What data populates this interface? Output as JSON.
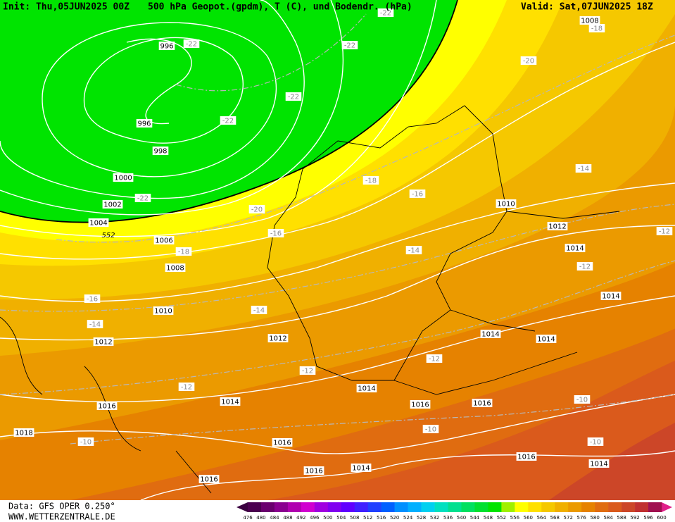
{
  "header": {
    "init": "Init: Thu,05JUN2025 00Z",
    "title": "500 hPa Geopot.(gpdm), T (C), und Bodendr. (hPa)",
    "valid": "Valid: Sat,07JUN2025 18Z"
  },
  "footer": {
    "source": "Data: GFS OPER 0.250°",
    "site": "WWW.WETTERZENTRALE.DE"
  },
  "contour_label": "552",
  "pressure_labels": [
    "996",
    "996",
    "998",
    "1000",
    "1002",
    "1004",
    "1006",
    "1008",
    "1010",
    "1012",
    "1012",
    "1014",
    "1016",
    "1018",
    "1016",
    "1016",
    "1016",
    "1014",
    "1016",
    "1016",
    "1014",
    "1016",
    "1014",
    "1014",
    "1014",
    "1014",
    "1014",
    "1012",
    "1010",
    "1008"
  ],
  "temperature_labels": [
    "-22",
    "-22",
    "-22",
    "-22",
    "-22",
    "-22",
    "-20",
    "-20",
    "-18",
    "-18",
    "-18",
    "-16",
    "-16",
    "-16",
    "-14",
    "-14",
    "-14",
    "-14",
    "-12",
    "-12",
    "-12",
    "-12",
    "-12",
    "-10",
    "-10",
    "-10",
    "-10"
  ],
  "colorbar": {
    "labels": [
      476,
      480,
      484,
      488,
      492,
      496,
      500,
      504,
      508,
      512,
      516,
      520,
      524,
      528,
      532,
      536,
      540,
      544,
      548,
      552,
      556,
      560,
      564,
      568,
      572,
      576,
      580,
      584,
      588,
      592,
      596,
      600
    ],
    "colors": [
      "#4b0050",
      "#6a006e",
      "#8a0090",
      "#b000b0",
      "#d000d0",
      "#a000e0",
      "#8000f0",
      "#6000ff",
      "#4020ff",
      "#2040ff",
      "#0060ff",
      "#0090ff",
      "#00b0ff",
      "#00d0f0",
      "#00e0c0",
      "#00e090",
      "#00e060",
      "#00e030",
      "#00e400",
      "#a0f000",
      "#ffff00",
      "#ffe000",
      "#f5c800",
      "#f0b000",
      "#eb9a00",
      "#e68200",
      "#e06c10",
      "#da5a1c",
      "#cc4628",
      "#c03030",
      "#a01050"
    ]
  }
}
